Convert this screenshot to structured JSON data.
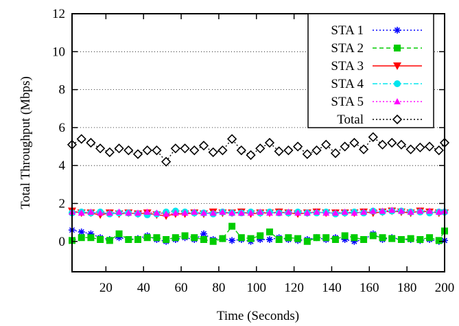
{
  "chart_data": {
    "type": "line",
    "title": "",
    "xlabel": "Time (Seconds)",
    "ylabel": "Total Throughput (Mbps)",
    "xlim": [
      2,
      200
    ],
    "ylim": [
      -1.6,
      12
    ],
    "xticks": [
      20,
      40,
      60,
      80,
      100,
      120,
      140,
      160,
      180,
      200
    ],
    "yticks": [
      0,
      2,
      4,
      6,
      8,
      10,
      12
    ],
    "grid": "horizontal dotted at 2, 4, 6, 8, 10",
    "legend_position": "top-right",
    "x": [
      2,
      7,
      12,
      17,
      22,
      27,
      32,
      37,
      42,
      47,
      52,
      57,
      62,
      67,
      72,
      77,
      82,
      87,
      92,
      97,
      102,
      107,
      112,
      117,
      122,
      127,
      132,
      137,
      142,
      147,
      152,
      157,
      162,
      167,
      172,
      177,
      182,
      187,
      192,
      197,
      200
    ],
    "series": [
      {
        "name": "STA 1",
        "color": "#0000ff",
        "marker": "asterisk",
        "dash": "dotted",
        "values": [
          0.6,
          0.5,
          0.4,
          0.2,
          0.1,
          0.2,
          0.1,
          0.15,
          0.3,
          0.1,
          0.0,
          0.1,
          0.2,
          0.1,
          0.4,
          0.1,
          0.15,
          0.05,
          0.1,
          0.0,
          0.1,
          0.1,
          0.2,
          0.1,
          0.05,
          0.1,
          0.2,
          0.1,
          0.2,
          0.1,
          0.0,
          0.1,
          0.4,
          0.1,
          0.2,
          0.1,
          0.1,
          0.05,
          0.1,
          0.0,
          0.05
        ]
      },
      {
        "name": "STA 2",
        "color": "#00cc00",
        "marker": "square",
        "dash": "dashed",
        "values": [
          0.05,
          0.2,
          0.2,
          0.1,
          0.05,
          0.4,
          0.1,
          0.1,
          0.2,
          0.2,
          0.1,
          0.2,
          0.3,
          0.2,
          0.1,
          0.0,
          0.15,
          0.8,
          0.2,
          0.15,
          0.3,
          0.5,
          0.1,
          0.2,
          0.15,
          0.0,
          0.2,
          0.2,
          0.1,
          0.3,
          0.2,
          0.1,
          0.3,
          0.2,
          0.15,
          0.1,
          0.15,
          0.1,
          0.2,
          0.05,
          0.55
        ]
      },
      {
        "name": "STA 3",
        "color": "#ff0000",
        "marker": "triangle-down",
        "dash": "solid",
        "values": [
          1.6,
          1.5,
          1.5,
          1.4,
          1.5,
          1.45,
          1.5,
          1.45,
          1.5,
          1.4,
          1.35,
          1.45,
          1.45,
          1.5,
          1.45,
          1.55,
          1.5,
          1.5,
          1.55,
          1.45,
          1.5,
          1.5,
          1.55,
          1.5,
          1.45,
          1.5,
          1.55,
          1.5,
          1.5,
          1.5,
          1.5,
          1.55,
          1.5,
          1.55,
          1.6,
          1.55,
          1.5,
          1.6,
          1.55,
          1.5,
          1.5
        ]
      },
      {
        "name": "STA 4",
        "color": "#00e5ee",
        "marker": "circle",
        "dash": "dash-dot",
        "values": [
          1.5,
          1.55,
          1.5,
          1.55,
          1.45,
          1.5,
          1.5,
          1.45,
          1.4,
          1.45,
          1.55,
          1.6,
          1.55,
          1.5,
          1.5,
          1.45,
          1.55,
          1.5,
          1.5,
          1.55,
          1.5,
          1.55,
          1.5,
          1.5,
          1.55,
          1.5,
          1.5,
          1.55,
          1.45,
          1.5,
          1.55,
          1.5,
          1.6,
          1.55,
          1.6,
          1.6,
          1.55,
          1.55,
          1.5,
          1.55,
          1.55
        ]
      },
      {
        "name": "STA 5",
        "color": "#ff00ff",
        "marker": "triangle-up",
        "dash": "dotted",
        "values": [
          1.55,
          1.5,
          1.55,
          1.5,
          1.5,
          1.55,
          1.5,
          1.5,
          1.55,
          1.5,
          1.45,
          1.5,
          1.5,
          1.55,
          1.5,
          1.5,
          1.55,
          1.5,
          1.5,
          1.5,
          1.55,
          1.5,
          1.5,
          1.55,
          1.5,
          1.5,
          1.55,
          1.5,
          1.5,
          1.55,
          1.5,
          1.55,
          1.6,
          1.6,
          1.65,
          1.6,
          1.55,
          1.6,
          1.6,
          1.55,
          1.6
        ]
      },
      {
        "name": "Total",
        "color": "#000000",
        "marker": "diamond",
        "dash": "dotted",
        "values": [
          5.1,
          5.4,
          5.2,
          4.9,
          4.7,
          4.9,
          4.8,
          4.6,
          4.8,
          4.8,
          4.2,
          4.9,
          4.9,
          4.8,
          5.05,
          4.7,
          4.8,
          5.4,
          4.8,
          4.55,
          4.9,
          5.2,
          4.75,
          4.8,
          5.0,
          4.6,
          4.8,
          5.1,
          4.65,
          5.0,
          5.2,
          4.85,
          5.5,
          5.1,
          5.2,
          5.1,
          4.85,
          4.95,
          5.0,
          4.8,
          5.2
        ]
      }
    ]
  }
}
